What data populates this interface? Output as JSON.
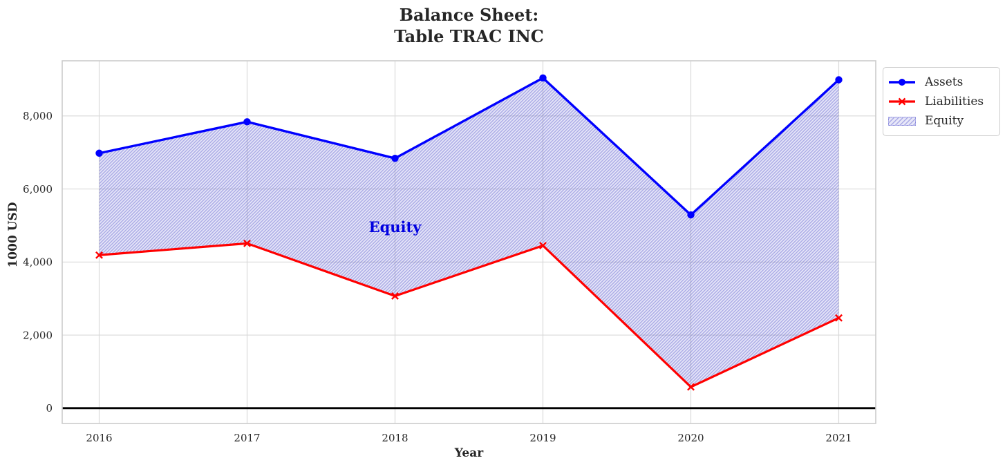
{
  "title": {
    "line1": "Balance Sheet:",
    "line2": "Table TRAC INC"
  },
  "chart_data": {
    "type": "line",
    "title": "Balance Sheet:\nTable TRAC INC",
    "xlabel": "Year",
    "ylabel": "1000 USD",
    "x": [
      2016,
      2017,
      2018,
      2019,
      2020,
      2021
    ],
    "x_tick_labels": [
      "2016",
      "2017",
      "2018",
      "2019",
      "2020",
      "2021"
    ],
    "series": [
      {
        "name": "Assets",
        "values": [
          6980,
          7840,
          6840,
          9040,
          5290,
          8990
        ],
        "color": "#0000ff",
        "marker": "circle",
        "line_width": 3.4
      },
      {
        "name": "Liabilities",
        "values": [
          4190,
          4510,
          3070,
          4450,
          580,
          2470
        ],
        "color": "#ff0000",
        "marker": "x",
        "line_width": 3.2
      }
    ],
    "area": {
      "name": "Equity",
      "between": [
        "Assets",
        "Liabilities"
      ],
      "hatch": "//",
      "base_color": "rgba(70,70,200,0.13)",
      "hatch_color": "rgba(70,70,200,0.38)",
      "edge_color": "rgba(70,70,200,0.35)"
    },
    "annotation": {
      "text": "Equity",
      "x": 2018.0,
      "y": 4820,
      "color": "#0000e0"
    },
    "yticks": [
      {
        "value": 0,
        "label": "0"
      },
      {
        "value": 2000,
        "label": "2,000"
      },
      {
        "value": 4000,
        "label": "4,000"
      },
      {
        "value": 6000,
        "label": "6,000"
      },
      {
        "value": 8000,
        "label": "8,000"
      }
    ],
    "xlim": [
      2015.75,
      2021.25
    ],
    "ylim": [
      -420,
      9510
    ],
    "grid": true,
    "grid_color": "#d9d9d9",
    "spine_color": "#cccccc",
    "zero_line": {
      "value": 0,
      "color": "#000000",
      "width": 2.8
    },
    "legend": {
      "position": "outside-upper-right",
      "items": [
        {
          "label": "Assets"
        },
        {
          "label": "Liabilities"
        },
        {
          "label": "Equity"
        }
      ]
    }
  }
}
